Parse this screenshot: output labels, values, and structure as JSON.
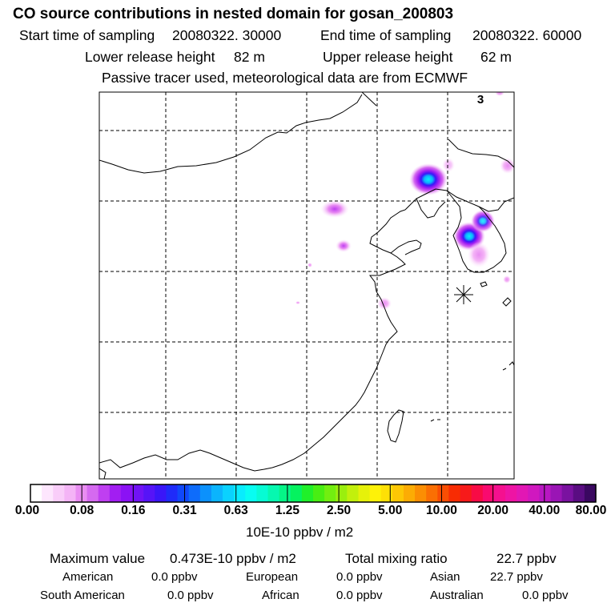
{
  "header": {
    "title": "CO  source contributions in nested domain for gosan_200803",
    "start_label": "Start time of sampling",
    "start_value": "20080322. 30000",
    "end_label": "End time of sampling",
    "end_value": "20080322. 60000",
    "lower_label": "Lower release height",
    "lower_value": "82 m",
    "upper_label": "Upper release height",
    "upper_value": "62 m",
    "tracer_note": "Passive tracer used, meteorological data are from ECMWF"
  },
  "map": {
    "panel_number": "3",
    "receptor": "gosan",
    "hotspots": [
      {
        "name": "northeast-china-plume",
        "intensity": 0.55
      },
      {
        "name": "seoul-plume",
        "intensity": 0.6
      },
      {
        "name": "korea-east-plume",
        "intensity": 0.4
      },
      {
        "name": "inner-mongolia-plume",
        "intensity": 0.12
      },
      {
        "name": "hebei-plume",
        "intensity": 0.1
      },
      {
        "name": "shandong-plume",
        "intensity": 0.09
      },
      {
        "name": "manchuria-edge",
        "intensity": 0.1
      }
    ]
  },
  "colorbar": {
    "unit": "10E-10 ppbv / m2",
    "tick_labels": [
      "0.00",
      "0.08",
      "0.16",
      "0.31",
      "0.63",
      "1.25",
      "2.50",
      "5.00",
      "10.00",
      "20.00",
      "40.00",
      "80.00"
    ],
    "colors": [
      "#ffffff",
      "#fde6fd",
      "#f9cdf9",
      "#f4b4f6",
      "#e98df2",
      "#d56af0",
      "#bf3ff1",
      "#a21ef2",
      "#8b12f4",
      "#7113f5",
      "#5614f7",
      "#3a16f8",
      "#1f2bf9",
      "#1048fa",
      "#0e6cfb",
      "#0c91fc",
      "#0bb4fd",
      "#0ad2fe",
      "#09ecfe",
      "#08fdf2",
      "#07fbd4",
      "#06f8b0",
      "#05f587",
      "#05f25f",
      "#20f02a",
      "#48ee13",
      "#72ee10",
      "#9aef0e",
      "#c2f00c",
      "#e6f10a",
      "#fef208",
      "#fee006",
      "#fdc705",
      "#fcac04",
      "#fb8e03",
      "#fa6f03",
      "#f94e03",
      "#f82c03",
      "#f71a1a",
      "#f80b45",
      "#f90a6f",
      "#f5108f",
      "#ee14a4",
      "#e217b4",
      "#d018bf",
      "#b817c2",
      "#9a15b5",
      "#7a12a0",
      "#5a0d82",
      "#3a0860"
    ]
  },
  "summary": {
    "max_label": "Maximum value",
    "max_value": "0.473E-10 ppbv / m2",
    "total_label": "Total mixing ratio",
    "total_value": "22.7 ppbv",
    "regions": [
      {
        "name": "American",
        "value": "0.0 ppbv"
      },
      {
        "name": "European",
        "value": "0.0 ppbv"
      },
      {
        "name": "Asian",
        "value": "22.7 ppbv"
      },
      {
        "name": "South American",
        "value": "0.0 ppbv"
      },
      {
        "name": "African",
        "value": "0.0 ppbv"
      },
      {
        "name": "Australian",
        "value": "0.0 ppbv"
      }
    ]
  }
}
